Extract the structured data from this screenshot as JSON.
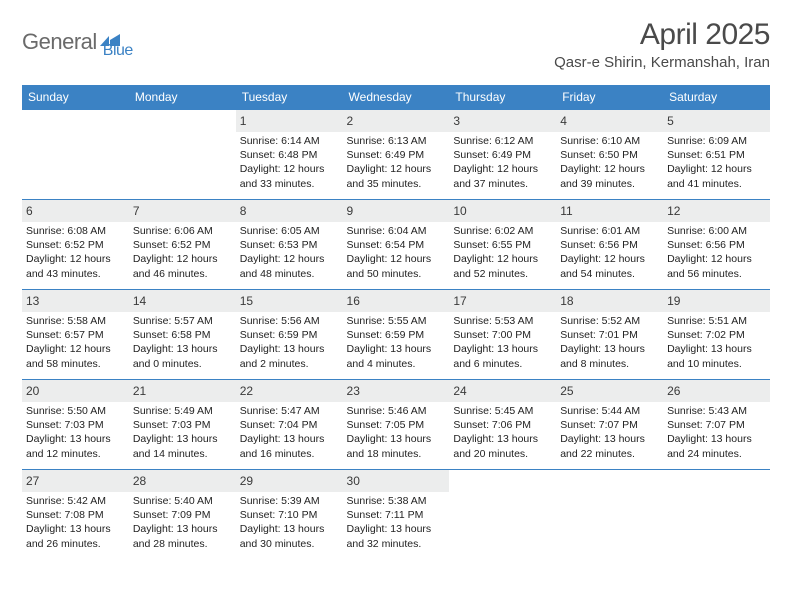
{
  "brand": {
    "name_part1": "General",
    "name_part2": "Blue"
  },
  "title": "April 2025",
  "location": "Qasr-e Shirin, Kermanshah, Iran",
  "colors": {
    "header_bg": "#3b82c4",
    "header_text": "#ffffff",
    "daynum_bg": "#eceded",
    "border": "#3b82c4",
    "text": "#222222",
    "title_text": "#4a4a4a",
    "logo_gray": "#6a6a6a",
    "logo_blue": "#3b82c4"
  },
  "typography": {
    "body_pt": 10.5,
    "header_pt": 12,
    "title_pt": 30,
    "location_pt": 15
  },
  "calendar": {
    "type": "table",
    "columns": [
      "Sunday",
      "Monday",
      "Tuesday",
      "Wednesday",
      "Thursday",
      "Friday",
      "Saturday"
    ],
    "weeks": [
      [
        null,
        null,
        {
          "n": "1",
          "sr": "6:14 AM",
          "ss": "6:48 PM",
          "dl": "12 hours and 33 minutes."
        },
        {
          "n": "2",
          "sr": "6:13 AM",
          "ss": "6:49 PM",
          "dl": "12 hours and 35 minutes."
        },
        {
          "n": "3",
          "sr": "6:12 AM",
          "ss": "6:49 PM",
          "dl": "12 hours and 37 minutes."
        },
        {
          "n": "4",
          "sr": "6:10 AM",
          "ss": "6:50 PM",
          "dl": "12 hours and 39 minutes."
        },
        {
          "n": "5",
          "sr": "6:09 AM",
          "ss": "6:51 PM",
          "dl": "12 hours and 41 minutes."
        }
      ],
      [
        {
          "n": "6",
          "sr": "6:08 AM",
          "ss": "6:52 PM",
          "dl": "12 hours and 43 minutes."
        },
        {
          "n": "7",
          "sr": "6:06 AM",
          "ss": "6:52 PM",
          "dl": "12 hours and 46 minutes."
        },
        {
          "n": "8",
          "sr": "6:05 AM",
          "ss": "6:53 PM",
          "dl": "12 hours and 48 minutes."
        },
        {
          "n": "9",
          "sr": "6:04 AM",
          "ss": "6:54 PM",
          "dl": "12 hours and 50 minutes."
        },
        {
          "n": "10",
          "sr": "6:02 AM",
          "ss": "6:55 PM",
          "dl": "12 hours and 52 minutes."
        },
        {
          "n": "11",
          "sr": "6:01 AM",
          "ss": "6:56 PM",
          "dl": "12 hours and 54 minutes."
        },
        {
          "n": "12",
          "sr": "6:00 AM",
          "ss": "6:56 PM",
          "dl": "12 hours and 56 minutes."
        }
      ],
      [
        {
          "n": "13",
          "sr": "5:58 AM",
          "ss": "6:57 PM",
          "dl": "12 hours and 58 minutes."
        },
        {
          "n": "14",
          "sr": "5:57 AM",
          "ss": "6:58 PM",
          "dl": "13 hours and 0 minutes."
        },
        {
          "n": "15",
          "sr": "5:56 AM",
          "ss": "6:59 PM",
          "dl": "13 hours and 2 minutes."
        },
        {
          "n": "16",
          "sr": "5:55 AM",
          "ss": "6:59 PM",
          "dl": "13 hours and 4 minutes."
        },
        {
          "n": "17",
          "sr": "5:53 AM",
          "ss": "7:00 PM",
          "dl": "13 hours and 6 minutes."
        },
        {
          "n": "18",
          "sr": "5:52 AM",
          "ss": "7:01 PM",
          "dl": "13 hours and 8 minutes."
        },
        {
          "n": "19",
          "sr": "5:51 AM",
          "ss": "7:02 PM",
          "dl": "13 hours and 10 minutes."
        }
      ],
      [
        {
          "n": "20",
          "sr": "5:50 AM",
          "ss": "7:03 PM",
          "dl": "13 hours and 12 minutes."
        },
        {
          "n": "21",
          "sr": "5:49 AM",
          "ss": "7:03 PM",
          "dl": "13 hours and 14 minutes."
        },
        {
          "n": "22",
          "sr": "5:47 AM",
          "ss": "7:04 PM",
          "dl": "13 hours and 16 minutes."
        },
        {
          "n": "23",
          "sr": "5:46 AM",
          "ss": "7:05 PM",
          "dl": "13 hours and 18 minutes."
        },
        {
          "n": "24",
          "sr": "5:45 AM",
          "ss": "7:06 PM",
          "dl": "13 hours and 20 minutes."
        },
        {
          "n": "25",
          "sr": "5:44 AM",
          "ss": "7:07 PM",
          "dl": "13 hours and 22 minutes."
        },
        {
          "n": "26",
          "sr": "5:43 AM",
          "ss": "7:07 PM",
          "dl": "13 hours and 24 minutes."
        }
      ],
      [
        {
          "n": "27",
          "sr": "5:42 AM",
          "ss": "7:08 PM",
          "dl": "13 hours and 26 minutes."
        },
        {
          "n": "28",
          "sr": "5:40 AM",
          "ss": "7:09 PM",
          "dl": "13 hours and 28 minutes."
        },
        {
          "n": "29",
          "sr": "5:39 AM",
          "ss": "7:10 PM",
          "dl": "13 hours and 30 minutes."
        },
        {
          "n": "30",
          "sr": "5:38 AM",
          "ss": "7:11 PM",
          "dl": "13 hours and 32 minutes."
        },
        null,
        null,
        null
      ]
    ],
    "labels": {
      "sunrise": "Sunrise:",
      "sunset": "Sunset:",
      "daylight": "Daylight:"
    }
  }
}
